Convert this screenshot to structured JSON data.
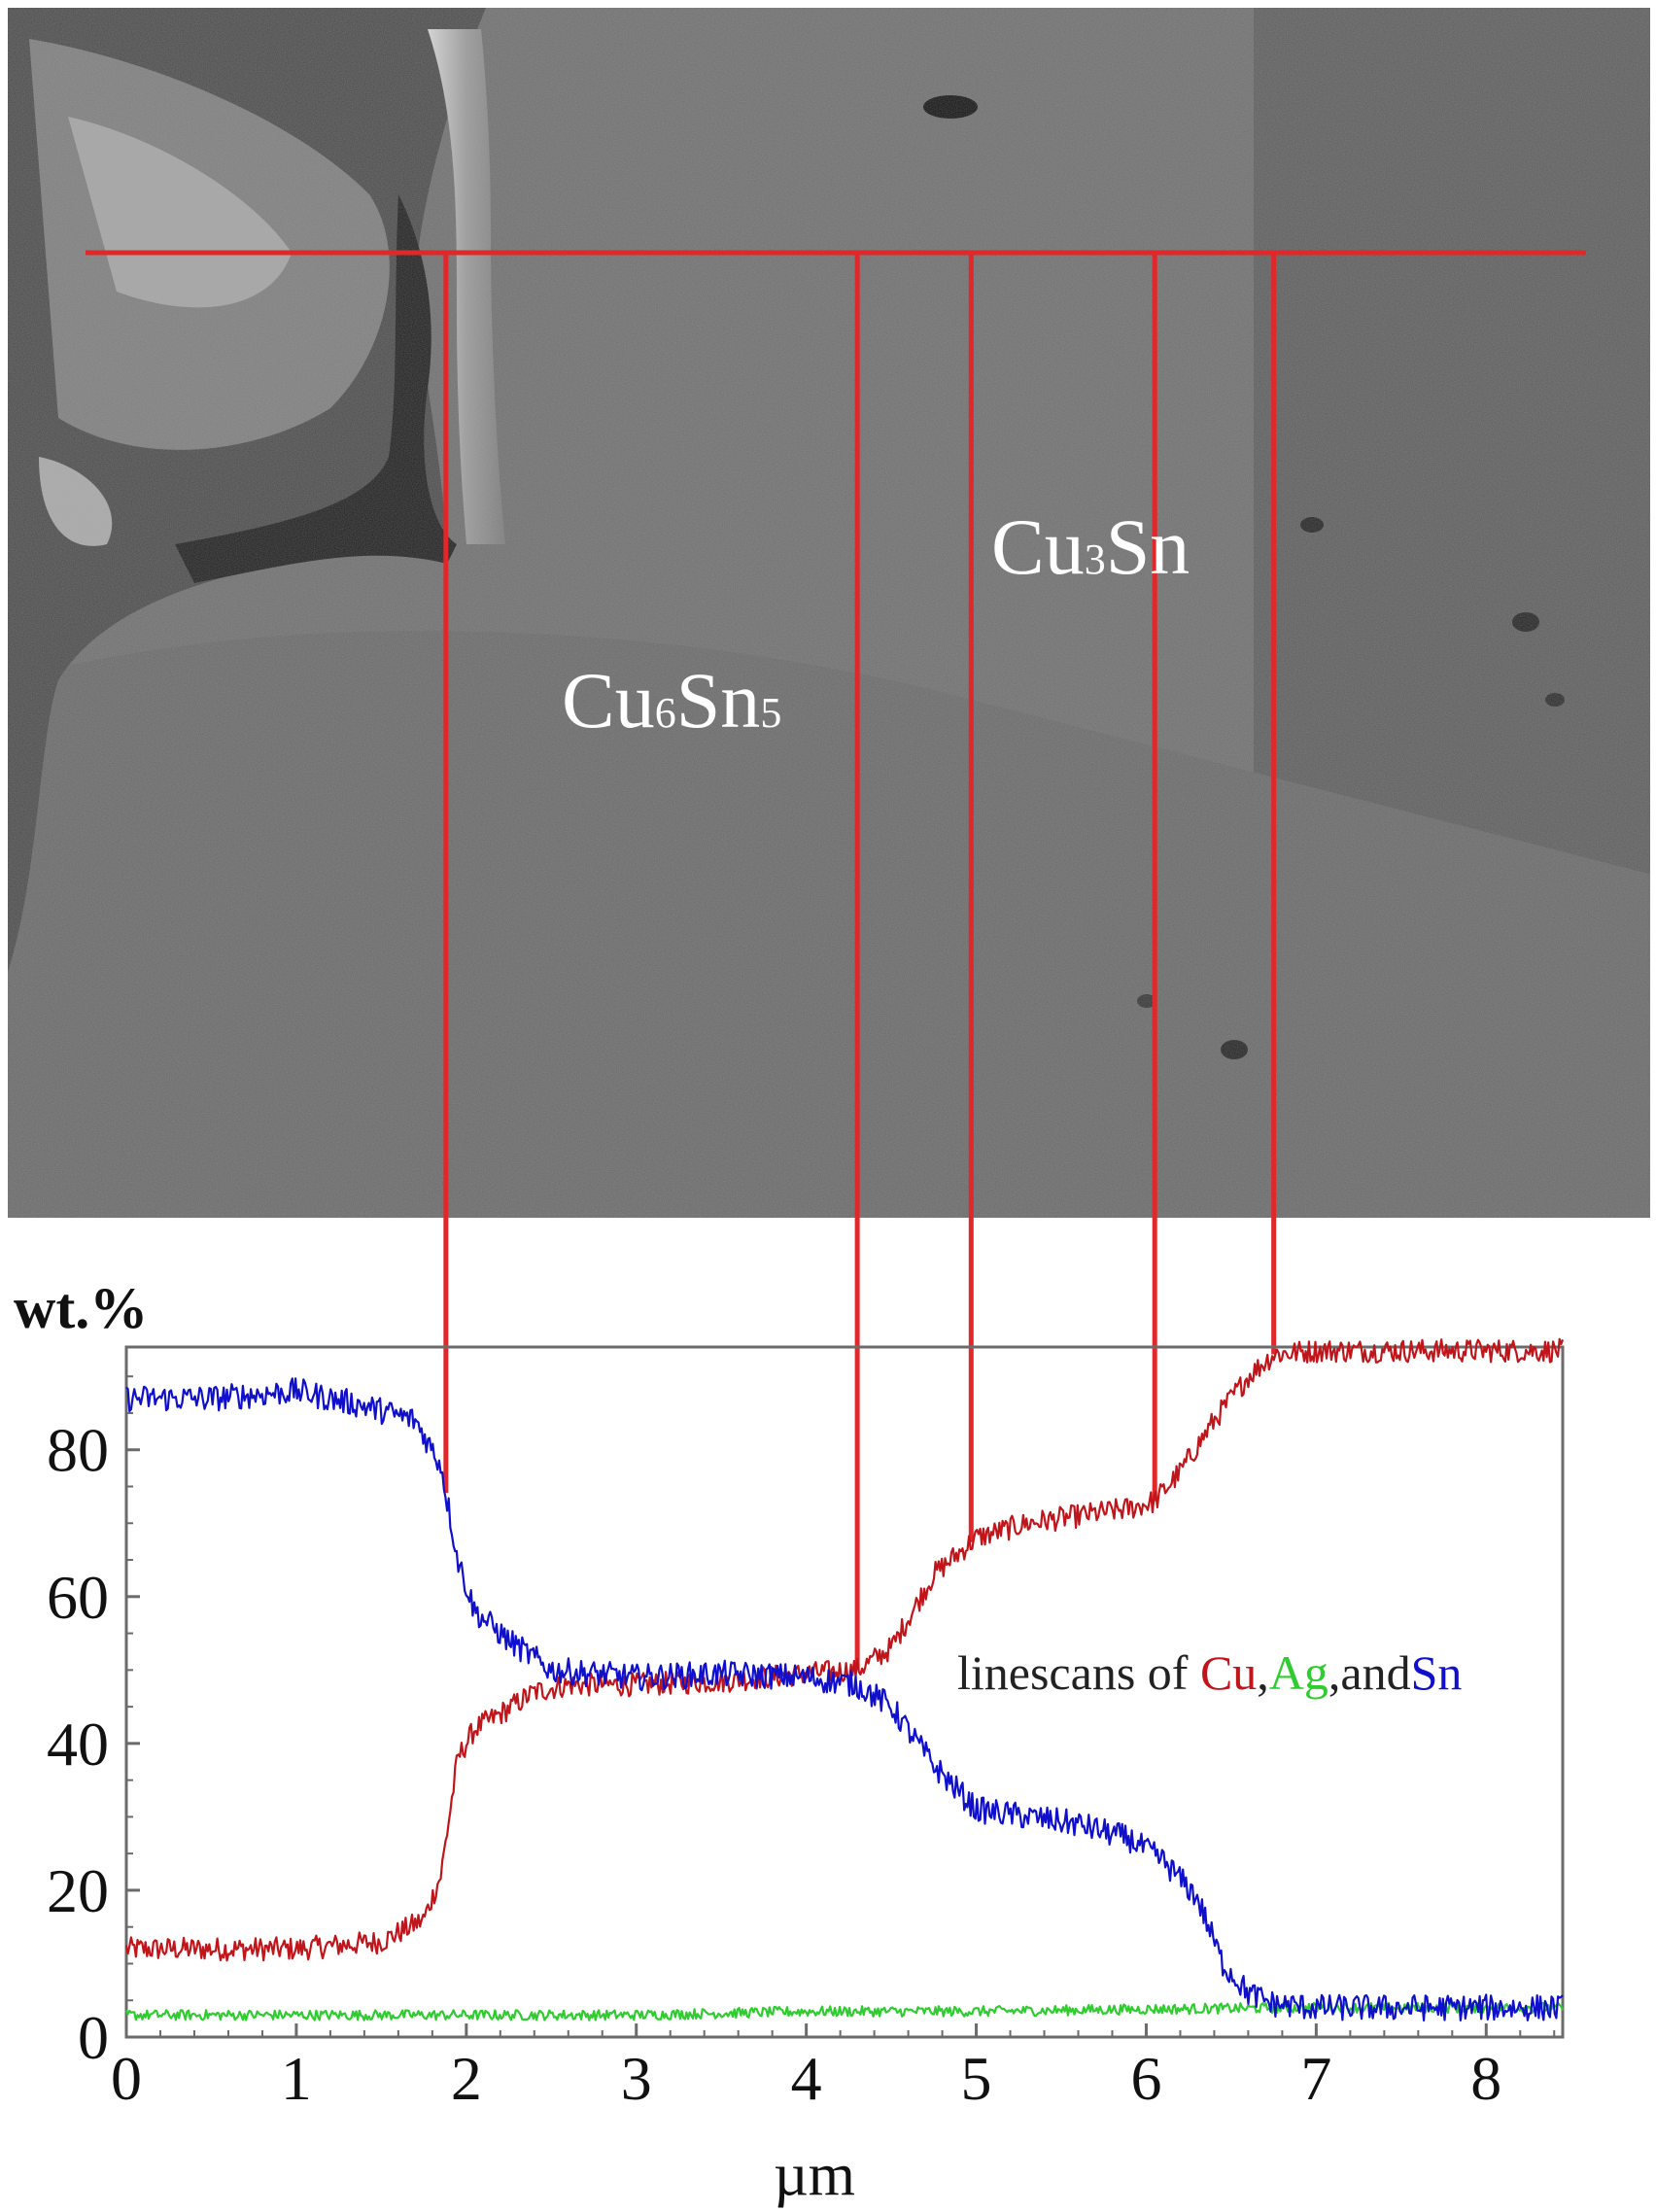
{
  "micrograph": {
    "phase_labels": [
      {
        "base": "Cu",
        "sub1": "6",
        "mid": "Sn",
        "sub2": "5"
      },
      {
        "base": "Cu",
        "sub1": "3",
        "mid": "Sn",
        "sub2": ""
      }
    ]
  },
  "chart_data": {
    "type": "line",
    "ylabel": "wt.%",
    "xlabel": "µm",
    "xlim": [
      0,
      8.45
    ],
    "ylim": [
      0,
      94
    ],
    "x_ticks": [
      0,
      1,
      2,
      3,
      4,
      5,
      6,
      7,
      8
    ],
    "y_ticks": [
      0,
      20,
      40,
      60,
      80
    ],
    "grid": false,
    "legend": {
      "prefix": "linescans of",
      "items": [
        {
          "text": "Cu",
          "color": "#c0151b"
        },
        {
          "text": ",",
          "color": "#222222"
        },
        {
          "text": "Ag",
          "color": "#2ecc2e"
        },
        {
          "text": ",and",
          "color": "#222222"
        },
        {
          "text": "Sn",
          "color": "#1010cc"
        }
      ],
      "placement": "right-middle"
    },
    "boundary_positions": [
      1.88,
      4.3,
      4.97,
      6.05,
      6.75
    ],
    "series": [
      {
        "name": "Cu",
        "color": "#c0151b",
        "x": [
          0,
          1.0,
          1.5,
          1.75,
          1.85,
          1.95,
          2.05,
          2.2,
          2.4,
          2.6,
          3.0,
          3.5,
          4.0,
          4.3,
          4.5,
          4.75,
          5.0,
          5.3,
          5.6,
          5.9,
          6.05,
          6.2,
          6.4,
          6.6,
          6.75,
          7.0,
          7.5,
          8.0,
          8.45
        ],
        "y": [
          12,
          12,
          13,
          16,
          22,
          38,
          42,
          44,
          47,
          48,
          48,
          48.5,
          49.5,
          50,
          53,
          63,
          68,
          70,
          71,
          72,
          73,
          77,
          84,
          90,
          93,
          93.5,
          93.5,
          93.5,
          93.5
        ]
      },
      {
        "name": "Ag",
        "color": "#2ecc2e",
        "x": [
          0,
          1,
          2,
          3,
          4,
          5,
          6,
          7,
          8,
          8.45
        ],
        "y": [
          3,
          3,
          3,
          3,
          3.5,
          3.5,
          3.8,
          4,
          4,
          4
        ]
      },
      {
        "name": "Sn",
        "color": "#1010cc",
        "x": [
          0,
          0.5,
          1.0,
          1.4,
          1.7,
          1.85,
          1.95,
          2.05,
          2.25,
          2.5,
          3.0,
          3.5,
          4.0,
          4.3,
          4.5,
          4.75,
          5.0,
          5.3,
          5.6,
          5.9,
          6.1,
          6.3,
          6.45,
          6.6,
          6.75,
          7.0,
          8.0,
          8.45
        ],
        "y": [
          87,
          87,
          88,
          86,
          84,
          78,
          65,
          58,
          54,
          50,
          49,
          49.5,
          49,
          48,
          45,
          37,
          31,
          30,
          29,
          27,
          24,
          19,
          10,
          6,
          4.5,
          4,
          4,
          4
        ]
      }
    ]
  }
}
